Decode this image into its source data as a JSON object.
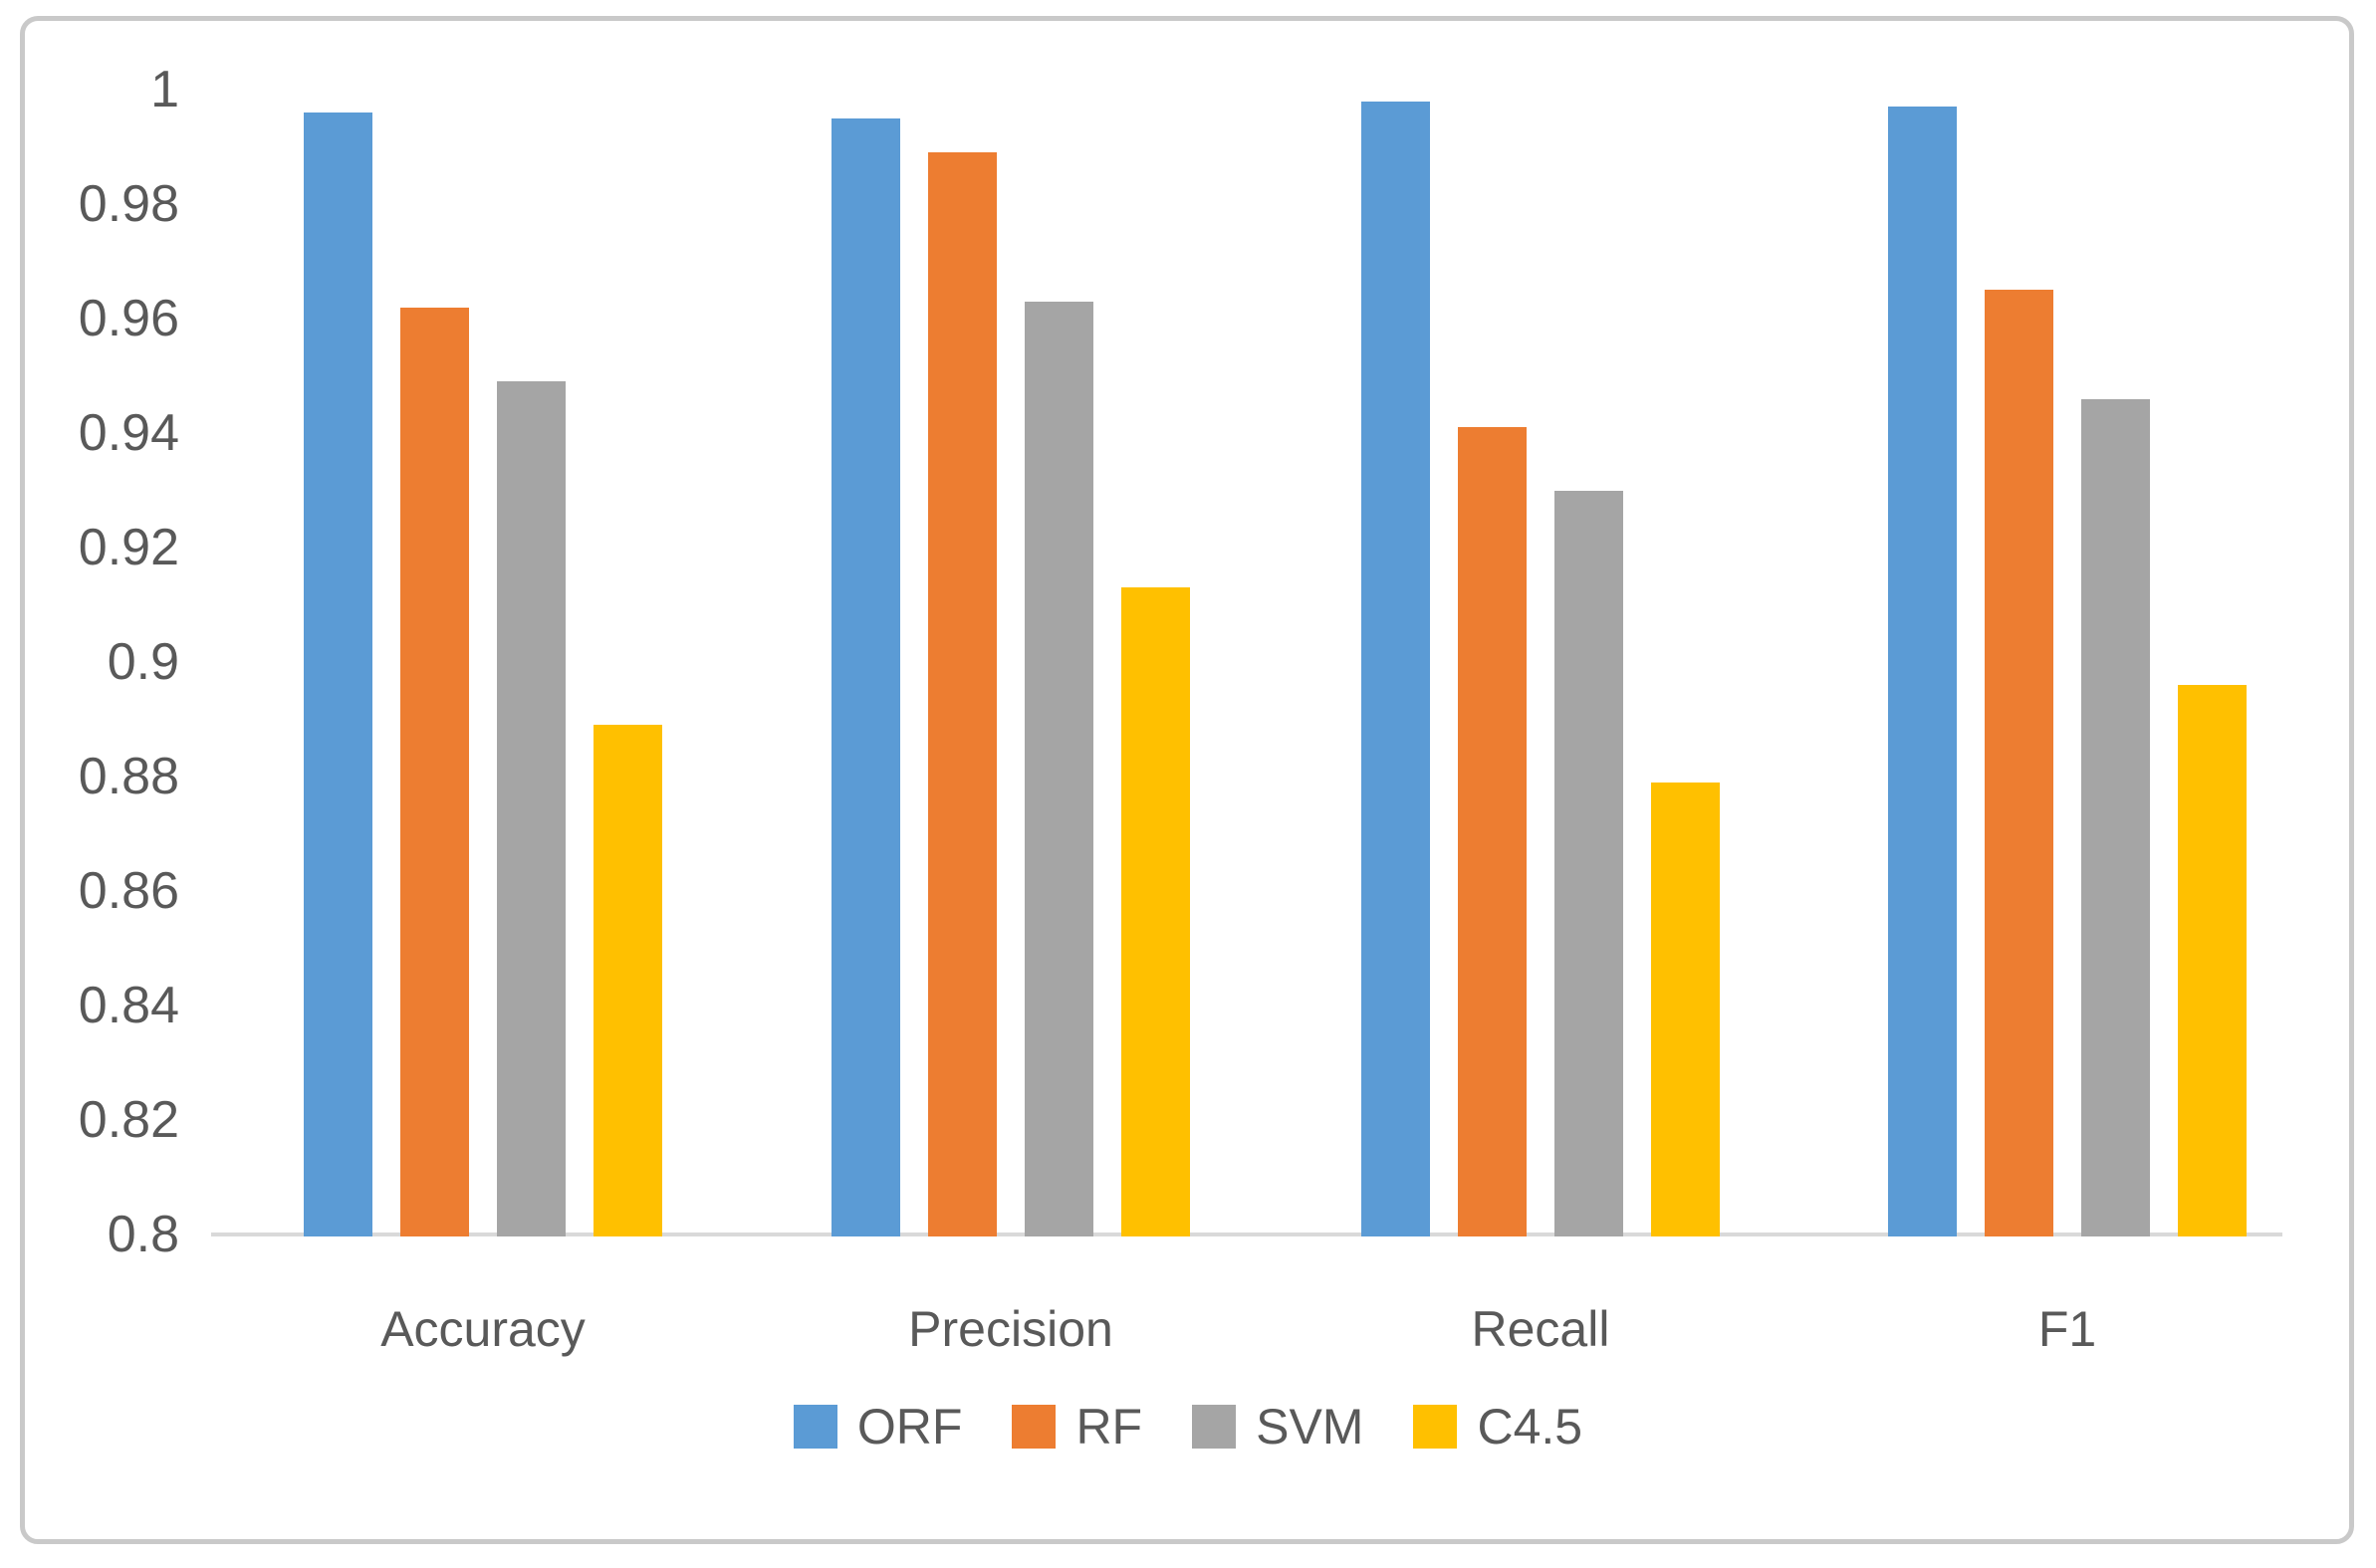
{
  "chart_data": {
    "type": "bar",
    "title": "",
    "xlabel": "",
    "ylabel": "",
    "categories": [
      "Accuracy",
      "Precision",
      "Recall",
      "F1"
    ],
    "series": [
      {
        "name": "ORF",
        "color": "#5B9BD5",
        "values": [
          0.996,
          0.995,
          0.998,
          0.997
        ]
      },
      {
        "name": "RF",
        "color": "#ED7D31",
        "values": [
          0.962,
          0.989,
          0.941,
          0.965
        ]
      },
      {
        "name": "SVM",
        "color": "#A5A5A5",
        "values": [
          0.949,
          0.963,
          0.93,
          0.946
        ]
      },
      {
        "name": "C4.5",
        "color": "#FFC000",
        "values": [
          0.889,
          0.913,
          0.879,
          0.896
        ]
      }
    ],
    "ylim": [
      0.8,
      1.0
    ],
    "y_tick_step": 0.02,
    "y_tick_labels": [
      "1",
      "0.98",
      "0.96",
      "0.94",
      "0.92",
      "0.9",
      "0.88",
      "0.86",
      "0.84",
      "0.82",
      "0.8"
    ],
    "grid": false,
    "legend_position": "bottom",
    "colors": {
      "axis_line": "#d9d9d9",
      "text": "#595959",
      "frame_border": "#c9c9c9",
      "background": "#ffffff"
    }
  }
}
